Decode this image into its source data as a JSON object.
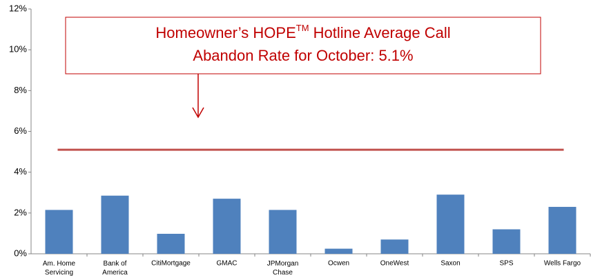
{
  "chart_data": {
    "type": "bar",
    "annotation": {
      "parts": [
        "Homeowner’s HOPE",
        "TM",
        " Hotline Average Call",
        "Abandon Rate for October: 5.1%"
      ]
    },
    "categories": [
      "Am. Home Servicing",
      "Bank of America",
      "CitiMortgage",
      "GMAC",
      "JPMorgan Chase",
      "Ocwen",
      "OneWest",
      "Saxon",
      "SPS",
      "Wells Fargo"
    ],
    "values": [
      2.15,
      2.85,
      0.98,
      2.7,
      2.15,
      0.25,
      0.7,
      2.9,
      1.2,
      2.3
    ],
    "color": "#4f81bd",
    "reference_line": {
      "value": 5.1,
      "color": "#c0504d"
    },
    "ylim": [
      0,
      12
    ],
    "yticks": [
      {
        "value": 0,
        "label": "0%"
      },
      {
        "value": 2,
        "label": "2%"
      },
      {
        "value": 4,
        "label": "4%"
      },
      {
        "value": 6,
        "label": "6%"
      },
      {
        "value": 8,
        "label": "8%"
      },
      {
        "value": 10,
        "label": "10%"
      },
      {
        "value": 12,
        "label": "12%"
      }
    ],
    "grid": false
  }
}
